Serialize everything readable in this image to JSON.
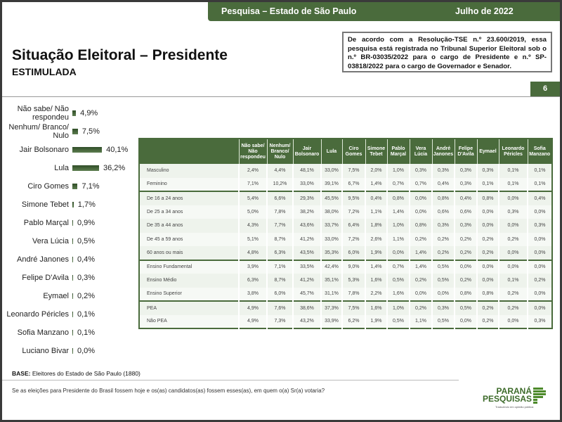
{
  "header": {
    "survey": "Pesquisa – Estado de São Paulo",
    "date": "Julho de 2022"
  },
  "title": "Situação Eleitoral – Presidente",
  "subtitle": "ESTIMULADA",
  "note": "De acordo com a Resolução-TSE n.º 23.600/2019, essa pesquisa está registrada no Tribunal Superior Eleitoral sob o n.º BR-03035/2022 para o cargo de Presidente e n.º SP-03818/2022 para o cargo de Governador e Senador.",
  "page_number": "6",
  "chart_data": {
    "type": "bar",
    "orientation": "horizontal",
    "categories": [
      "Não sabe/ Não respondeu",
      "Nenhum/ Branco/ Nulo",
      "Jair Bolsonaro",
      "Lula",
      "Ciro Gomes",
      "Simone Tebet",
      "Pablo Marçal",
      "Vera Lúcia",
      "André Janones",
      "Felipe D'Avila",
      "Eymael",
      "Leonardo Péricles",
      "Sofia Manzano",
      "Luciano Bivar"
    ],
    "values": [
      4.9,
      7.5,
      40.1,
      36.2,
      7.1,
      1.7,
      0.9,
      0.5,
      0.4,
      0.3,
      0.2,
      0.1,
      0.1,
      0.0
    ],
    "labels": [
      "4,9%",
      "7,5%",
      "40,1%",
      "36,2%",
      "7,1%",
      "1,7%",
      "0,9%",
      "0,5%",
      "0,4%",
      "0,3%",
      "0,2%",
      "0,1%",
      "0,1%",
      "0,0%"
    ]
  },
  "table": {
    "headers": [
      "Não sabe/ Não respondeu",
      "Nenhum/ Branco/ Nulo",
      "Jair Bolsonaro",
      "Lula",
      "Ciro Gomes",
      "Simone Tebet",
      "Pablo Marçal",
      "Vera Lúcia",
      "André Janones",
      "Felipe D'Avila",
      "Eymael",
      "Leonardo Péricles",
      "Sofia Manzano"
    ],
    "rows": [
      {
        "label": "Masculino",
        "group_start": true,
        "values": [
          "2,4%",
          "4,4%",
          "48,1%",
          "33,0%",
          "7,5%",
          "2,0%",
          "1,0%",
          "0,3%",
          "0,3%",
          "0,3%",
          "0,3%",
          "0,1%",
          "0,1%"
        ]
      },
      {
        "label": "Feminino",
        "values": [
          "7,1%",
          "10,2%",
          "33,0%",
          "39,1%",
          "6,7%",
          "1,4%",
          "0,7%",
          "0,7%",
          "0,4%",
          "0,3%",
          "0,1%",
          "0,1%",
          "0,1%"
        ]
      },
      {
        "label": "De 16 a 24 anos",
        "group_start": true,
        "values": [
          "5,4%",
          "6,6%",
          "29,3%",
          "45,5%",
          "9,5%",
          "0,4%",
          "0,8%",
          "0,0%",
          "0,8%",
          "0,4%",
          "0,8%",
          "0,0%",
          "0,4%"
        ]
      },
      {
        "label": "De 25 a 34 anos",
        "values": [
          "5,0%",
          "7,8%",
          "38,2%",
          "38,0%",
          "7,2%",
          "1,1%",
          "1,4%",
          "0,0%",
          "0,6%",
          "0,6%",
          "0,0%",
          "0,3%",
          "0,0%"
        ]
      },
      {
        "label": "De 35 a 44 anos",
        "values": [
          "4,3%",
          "7,7%",
          "43,6%",
          "33,7%",
          "6,4%",
          "1,8%",
          "1,0%",
          "0,8%",
          "0,3%",
          "0,3%",
          "0,0%",
          "0,0%",
          "0,3%"
        ]
      },
      {
        "label": "De 45 a 59 anos",
        "values": [
          "5,1%",
          "8,7%",
          "41,2%",
          "33,0%",
          "7,2%",
          "2,6%",
          "1,1%",
          "0,2%",
          "0,2%",
          "0,2%",
          "0,2%",
          "0,2%",
          "0,0%"
        ]
      },
      {
        "label": "60 anos ou mais",
        "values": [
          "4,8%",
          "6,3%",
          "43,5%",
          "35,3%",
          "6,0%",
          "1,9%",
          "0,0%",
          "1,4%",
          "0,2%",
          "0,2%",
          "0,2%",
          "0,0%",
          "0,0%"
        ]
      },
      {
        "label": "Ensino Fundamental",
        "group_start": true,
        "values": [
          "3,9%",
          "7,1%",
          "33,5%",
          "42,4%",
          "9,0%",
          "1,4%",
          "0,7%",
          "1,4%",
          "0,5%",
          "0,0%",
          "0,0%",
          "0,0%",
          "0,0%"
        ]
      },
      {
        "label": "Ensino Médio",
        "values": [
          "6,3%",
          "8,7%",
          "41,2%",
          "35,1%",
          "5,3%",
          "1,6%",
          "0,5%",
          "0,2%",
          "0,5%",
          "0,2%",
          "0,0%",
          "0,1%",
          "0,2%"
        ]
      },
      {
        "label": "Ensino Superior",
        "values": [
          "3,8%",
          "6,0%",
          "45,7%",
          "31,1%",
          "7,8%",
          "2,2%",
          "1,6%",
          "0,0%",
          "0,0%",
          "0,8%",
          "0,8%",
          "0,2%",
          "0,0%"
        ]
      },
      {
        "label": "PEA",
        "group_start": true,
        "values": [
          "4,9%",
          "7,6%",
          "38,6%",
          "37,3%",
          "7,5%",
          "1,6%",
          "1,0%",
          "0,2%",
          "0,3%",
          "0,5%",
          "0,2%",
          "0,2%",
          "0,0%"
        ]
      },
      {
        "label": "Não PEA",
        "values": [
          "4,9%",
          "7,3%",
          "43,2%",
          "33,9%",
          "6,2%",
          "1,9%",
          "0,5%",
          "1,1%",
          "0,5%",
          "0,0%",
          "0,2%",
          "0,0%",
          "0,3%"
        ]
      }
    ]
  },
  "base": {
    "label": "BASE:",
    "text": "Eleitores do Estado de São Paulo (1880)"
  },
  "question": "Se as eleições para Presidente do Brasil fossem hoje e os(as) candidatos(as) fossem esses(as), em quem o(a) Sr(a) votaria?",
  "logo": {
    "line1": "PARANÁ",
    "line2": "PESQUISAS",
    "tagline": "Traduzindo em opinião pública"
  },
  "colors": {
    "brand_green": "#4a6b3c"
  }
}
